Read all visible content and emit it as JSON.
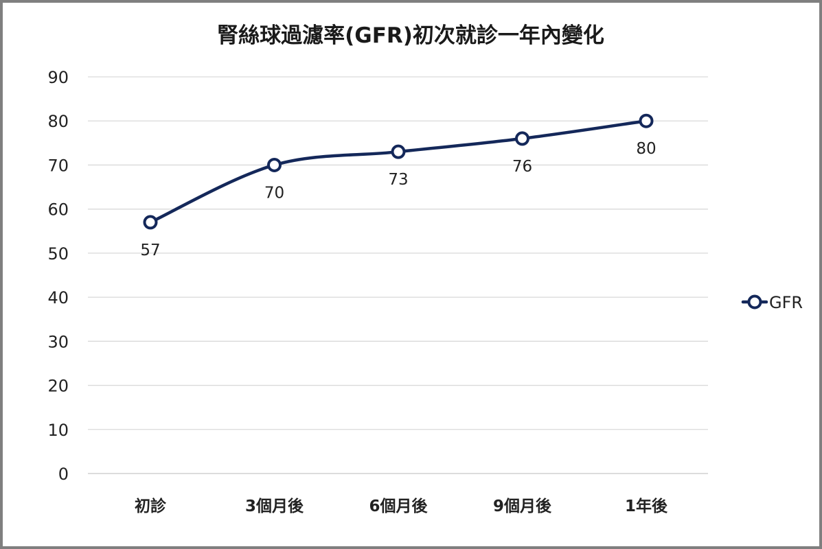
{
  "chart_data": {
    "type": "line",
    "title": "腎絲球過濾率(GFR)初次就診一年內變化",
    "categories": [
      "初診",
      "3個月後",
      "6個月後",
      "9個月後",
      "1年後"
    ],
    "series": [
      {
        "name": "GFR",
        "values": [
          57,
          70,
          73,
          76,
          80
        ],
        "color": "#14285a"
      }
    ],
    "ylim": [
      0,
      90
    ],
    "yticks": [
      0,
      10,
      20,
      30,
      40,
      50,
      60,
      70,
      80,
      90
    ],
    "grid": true,
    "smooth": true,
    "marker": "hollow-circle",
    "legend_position": "right",
    "data_labels": "below"
  }
}
